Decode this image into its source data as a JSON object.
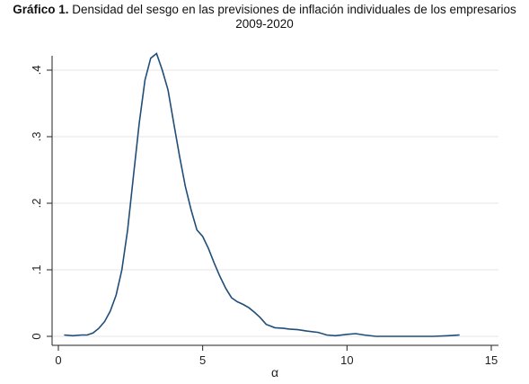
{
  "title": {
    "lead": "Gráfico 1.",
    "line1": "Densidad del sesgo en las previsiones de inflación individuales de los empresarios",
    "line2": "2009-2020"
  },
  "colors": {
    "line": "#1f4e79",
    "grid": "#e6e6e6",
    "axis": "#222222"
  },
  "chart_data": {
    "type": "line",
    "xlabel": "α",
    "ylabel": "",
    "xlim": [
      0,
      15
    ],
    "ylim": [
      0,
      0.42
    ],
    "xticks": [
      0,
      5,
      10,
      15
    ],
    "xtick_labels": [
      "0",
      "5",
      "10",
      "15"
    ],
    "yticks": [
      0,
      0.1,
      0.2,
      0.3,
      0.4
    ],
    "ytick_labels": [
      "0",
      ".1",
      ".2",
      ".3",
      ".4"
    ],
    "grid": true,
    "legend": "none",
    "series": [
      {
        "x": [
          0.2,
          0.5,
          0.8,
          1.0,
          1.2,
          1.4,
          1.6,
          1.8,
          2.0,
          2.2,
          2.4,
          2.6,
          2.8,
          3.0,
          3.2,
          3.4,
          3.6,
          3.8,
          4.0,
          4.2,
          4.4,
          4.6,
          4.8,
          5.0,
          5.2,
          5.4,
          5.6,
          5.8,
          6.0,
          6.2,
          6.4,
          6.6,
          6.8,
          7.0,
          7.2,
          7.5,
          7.8,
          8.0,
          8.3,
          8.6,
          9.0,
          9.3,
          9.6,
          10.0,
          10.3,
          10.6,
          11.0,
          11.5,
          12.0,
          12.5,
          13.0,
          13.5,
          13.9
        ],
        "y": [
          0.002,
          0.001,
          0.002,
          0.002,
          0.005,
          0.012,
          0.022,
          0.038,
          0.062,
          0.1,
          0.16,
          0.24,
          0.32,
          0.385,
          0.418,
          0.425,
          0.4,
          0.37,
          0.32,
          0.27,
          0.225,
          0.19,
          0.16,
          0.15,
          0.132,
          0.11,
          0.09,
          0.072,
          0.058,
          0.052,
          0.048,
          0.043,
          0.036,
          0.028,
          0.018,
          0.013,
          0.012,
          0.011,
          0.01,
          0.008,
          0.006,
          0.002,
          0.001,
          0.003,
          0.004,
          0.002,
          0.0,
          0.0,
          0.0,
          0.0,
          0.0,
          0.001,
          0.002
        ]
      }
    ]
  }
}
